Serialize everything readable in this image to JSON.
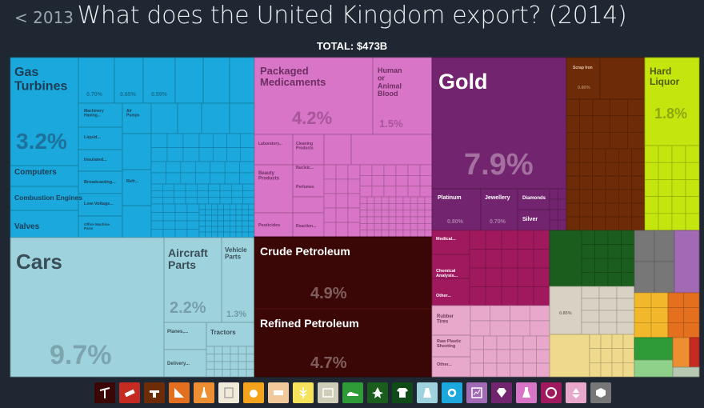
{
  "nav": {
    "back_label": "< 2013"
  },
  "header": {
    "title": "What does the United Kingdom export? (2014)",
    "total": "TOTAL: $473B"
  },
  "chart_data": {
    "type": "treemap",
    "title": "What does the United Kingdom export? (2014)",
    "total": "TOTAL: $473B",
    "categories": [
      {
        "name": "Machinery",
        "color": "#1ba9dd",
        "items": [
          {
            "label": "Gas Turbines",
            "share": "3.2%"
          },
          {
            "label": "Computers"
          },
          {
            "label": "Combustion Engines"
          },
          {
            "label": "Valves"
          },
          {
            "label": "0.70%"
          },
          {
            "label": "0.65%"
          },
          {
            "label": "0.59%"
          },
          {
            "label": "Machinery Having..."
          },
          {
            "label": "Air Pumps"
          },
          {
            "label": "Liquid..."
          },
          {
            "label": "Insulated..."
          },
          {
            "label": "Broadcasting..."
          },
          {
            "label": "Low-Voltage..."
          },
          {
            "label": "Refr..."
          },
          {
            "label": "Office Machine Parts"
          }
        ]
      },
      {
        "name": "Transportation",
        "color": "#9ed3de",
        "items": [
          {
            "label": "Cars",
            "share": "9.7%"
          },
          {
            "label": "Aircraft Parts",
            "share": "2.2%"
          },
          {
            "label": "Vehicle Parts",
            "share": "1.3%"
          },
          {
            "label": "Planes,..."
          },
          {
            "label": "Tractors"
          },
          {
            "label": "Delivery..."
          }
        ]
      },
      {
        "name": "Chemical Products",
        "color": "#d875c6",
        "items": [
          {
            "label": "Packaged Medicaments",
            "share": "4.2%"
          },
          {
            "label": "Human or Animal Blood",
            "share": "1.5%"
          },
          {
            "label": "Laboratory..."
          },
          {
            "label": "Cleaning Products"
          },
          {
            "label": "Beauty Products"
          },
          {
            "label": "Nucleic..."
          },
          {
            "label": "Perfumes"
          },
          {
            "label": "Pesticides"
          },
          {
            "label": "Reaction..."
          }
        ]
      },
      {
        "name": "Precious Metals",
        "color": "#73246e",
        "items": [
          {
            "label": "Gold",
            "share": "7.9%"
          },
          {
            "label": "Platinum",
            "share": "0.80%"
          },
          {
            "label": "Jewellery",
            "share": "0.70%"
          },
          {
            "label": "Diamonds"
          },
          {
            "label": "Silver"
          }
        ]
      },
      {
        "name": "Metals",
        "color": "#6d2b07",
        "items": [
          {
            "label": "Scrap Iron",
            "share": "0.80%"
          }
        ]
      },
      {
        "name": "Foodstuffs",
        "color": "#c4e60e",
        "items": [
          {
            "label": "Hard Liquor",
            "share": "1.8%"
          }
        ]
      },
      {
        "name": "Mineral Products",
        "color": "#3a0706",
        "items": [
          {
            "label": "Crude Petroleum",
            "share": "4.9%"
          },
          {
            "label": "Refined Petroleum",
            "share": "4.7%"
          }
        ]
      },
      {
        "name": "Plastics and Rubbers",
        "color": "#a0195f",
        "items": [
          {
            "label": "Medical..."
          },
          {
            "label": "Chemical Analysis..."
          },
          {
            "label": "Other..."
          }
        ]
      },
      {
        "name": "Instruments",
        "color": "#e8a8cc",
        "items": [
          {
            "label": "Rubber Tires"
          },
          {
            "label": "Raw Plastic Sheeting"
          },
          {
            "label": "Other..."
          }
        ]
      },
      {
        "name": "Vegetable Products",
        "color": "#1a5d1c",
        "items": []
      },
      {
        "name": "Textiles",
        "color": "#d7d2c3",
        "items": [
          {
            "label": "0.85%"
          }
        ]
      },
      {
        "name": "Other categories",
        "color": "#777777",
        "items": []
      }
    ]
  },
  "category_tray": [
    {
      "name": "mining-icon",
      "color": "#3a0706"
    },
    {
      "name": "metals-icon",
      "color": "#c62b22"
    },
    {
      "name": "footwear-icon",
      "color": "#6d2b07"
    },
    {
      "name": "stone-icon",
      "color": "#e46f1e"
    },
    {
      "name": "chemicals-icon",
      "color": "#ec8e31"
    },
    {
      "name": "paper-icon",
      "color": "#f2ead8"
    },
    {
      "name": "foodstuffs-icon",
      "color": "#f5a31c"
    },
    {
      "name": "animal-products-icon",
      "color": "#f2c99a"
    },
    {
      "name": "vegetable-products-icon",
      "color": "#f7e25b"
    },
    {
      "name": "textiles-icon",
      "color": "#cfcdb8"
    },
    {
      "name": "shoes-icon",
      "color": "#2e9b37"
    },
    {
      "name": "animal-hides-icon",
      "color": "#1a5d1c"
    },
    {
      "name": "apparel-icon",
      "color": "#0f4b17"
    },
    {
      "name": "transport-icon",
      "color": "#9ed3de"
    },
    {
      "name": "machinery-icon",
      "color": "#1ba9dd"
    },
    {
      "name": "instruments-icon",
      "color": "#a26ab5"
    },
    {
      "name": "precious-metals-icon",
      "color": "#73246e"
    },
    {
      "name": "chemical-products-icon",
      "color": "#d875c6"
    },
    {
      "name": "plastics-icon",
      "color": "#a0195f"
    },
    {
      "name": "recycling-icon",
      "color": "#e8a8cc"
    },
    {
      "name": "miscellaneous-icon",
      "color": "#777777"
    }
  ]
}
